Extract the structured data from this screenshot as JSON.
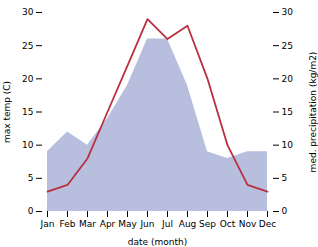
{
  "chart_data": {
    "type": "line",
    "categories": [
      "Jan",
      "Feb",
      "Mar",
      "Apr",
      "May",
      "Jun",
      "Jul",
      "Aug",
      "Sep",
      "Oct",
      "Nov",
      "Dec"
    ],
    "xlabel": "date (month)",
    "ylabel": "max temp (C)",
    "y2label": "med. precipitation (kg/m2)",
    "ylim": [
      0,
      30
    ],
    "yticks": [
      0,
      5,
      10,
      15,
      20,
      25,
      30
    ],
    "y2lim": [
      0,
      30
    ],
    "y2ticks": [
      0,
      5,
      10,
      15,
      20,
      25,
      30
    ],
    "grid": false,
    "series": [
      {
        "type": "area",
        "axis": "y2",
        "color": "#b8bedd",
        "values": [
          9,
          12,
          10,
          14,
          19,
          26,
          26,
          19,
          9,
          8,
          9,
          9
        ]
      },
      {
        "type": "line",
        "color": "#b83040",
        "values": [
          3,
          4,
          8,
          15,
          22,
          29,
          26,
          28,
          20,
          10,
          4,
          3
        ]
      }
    ]
  }
}
